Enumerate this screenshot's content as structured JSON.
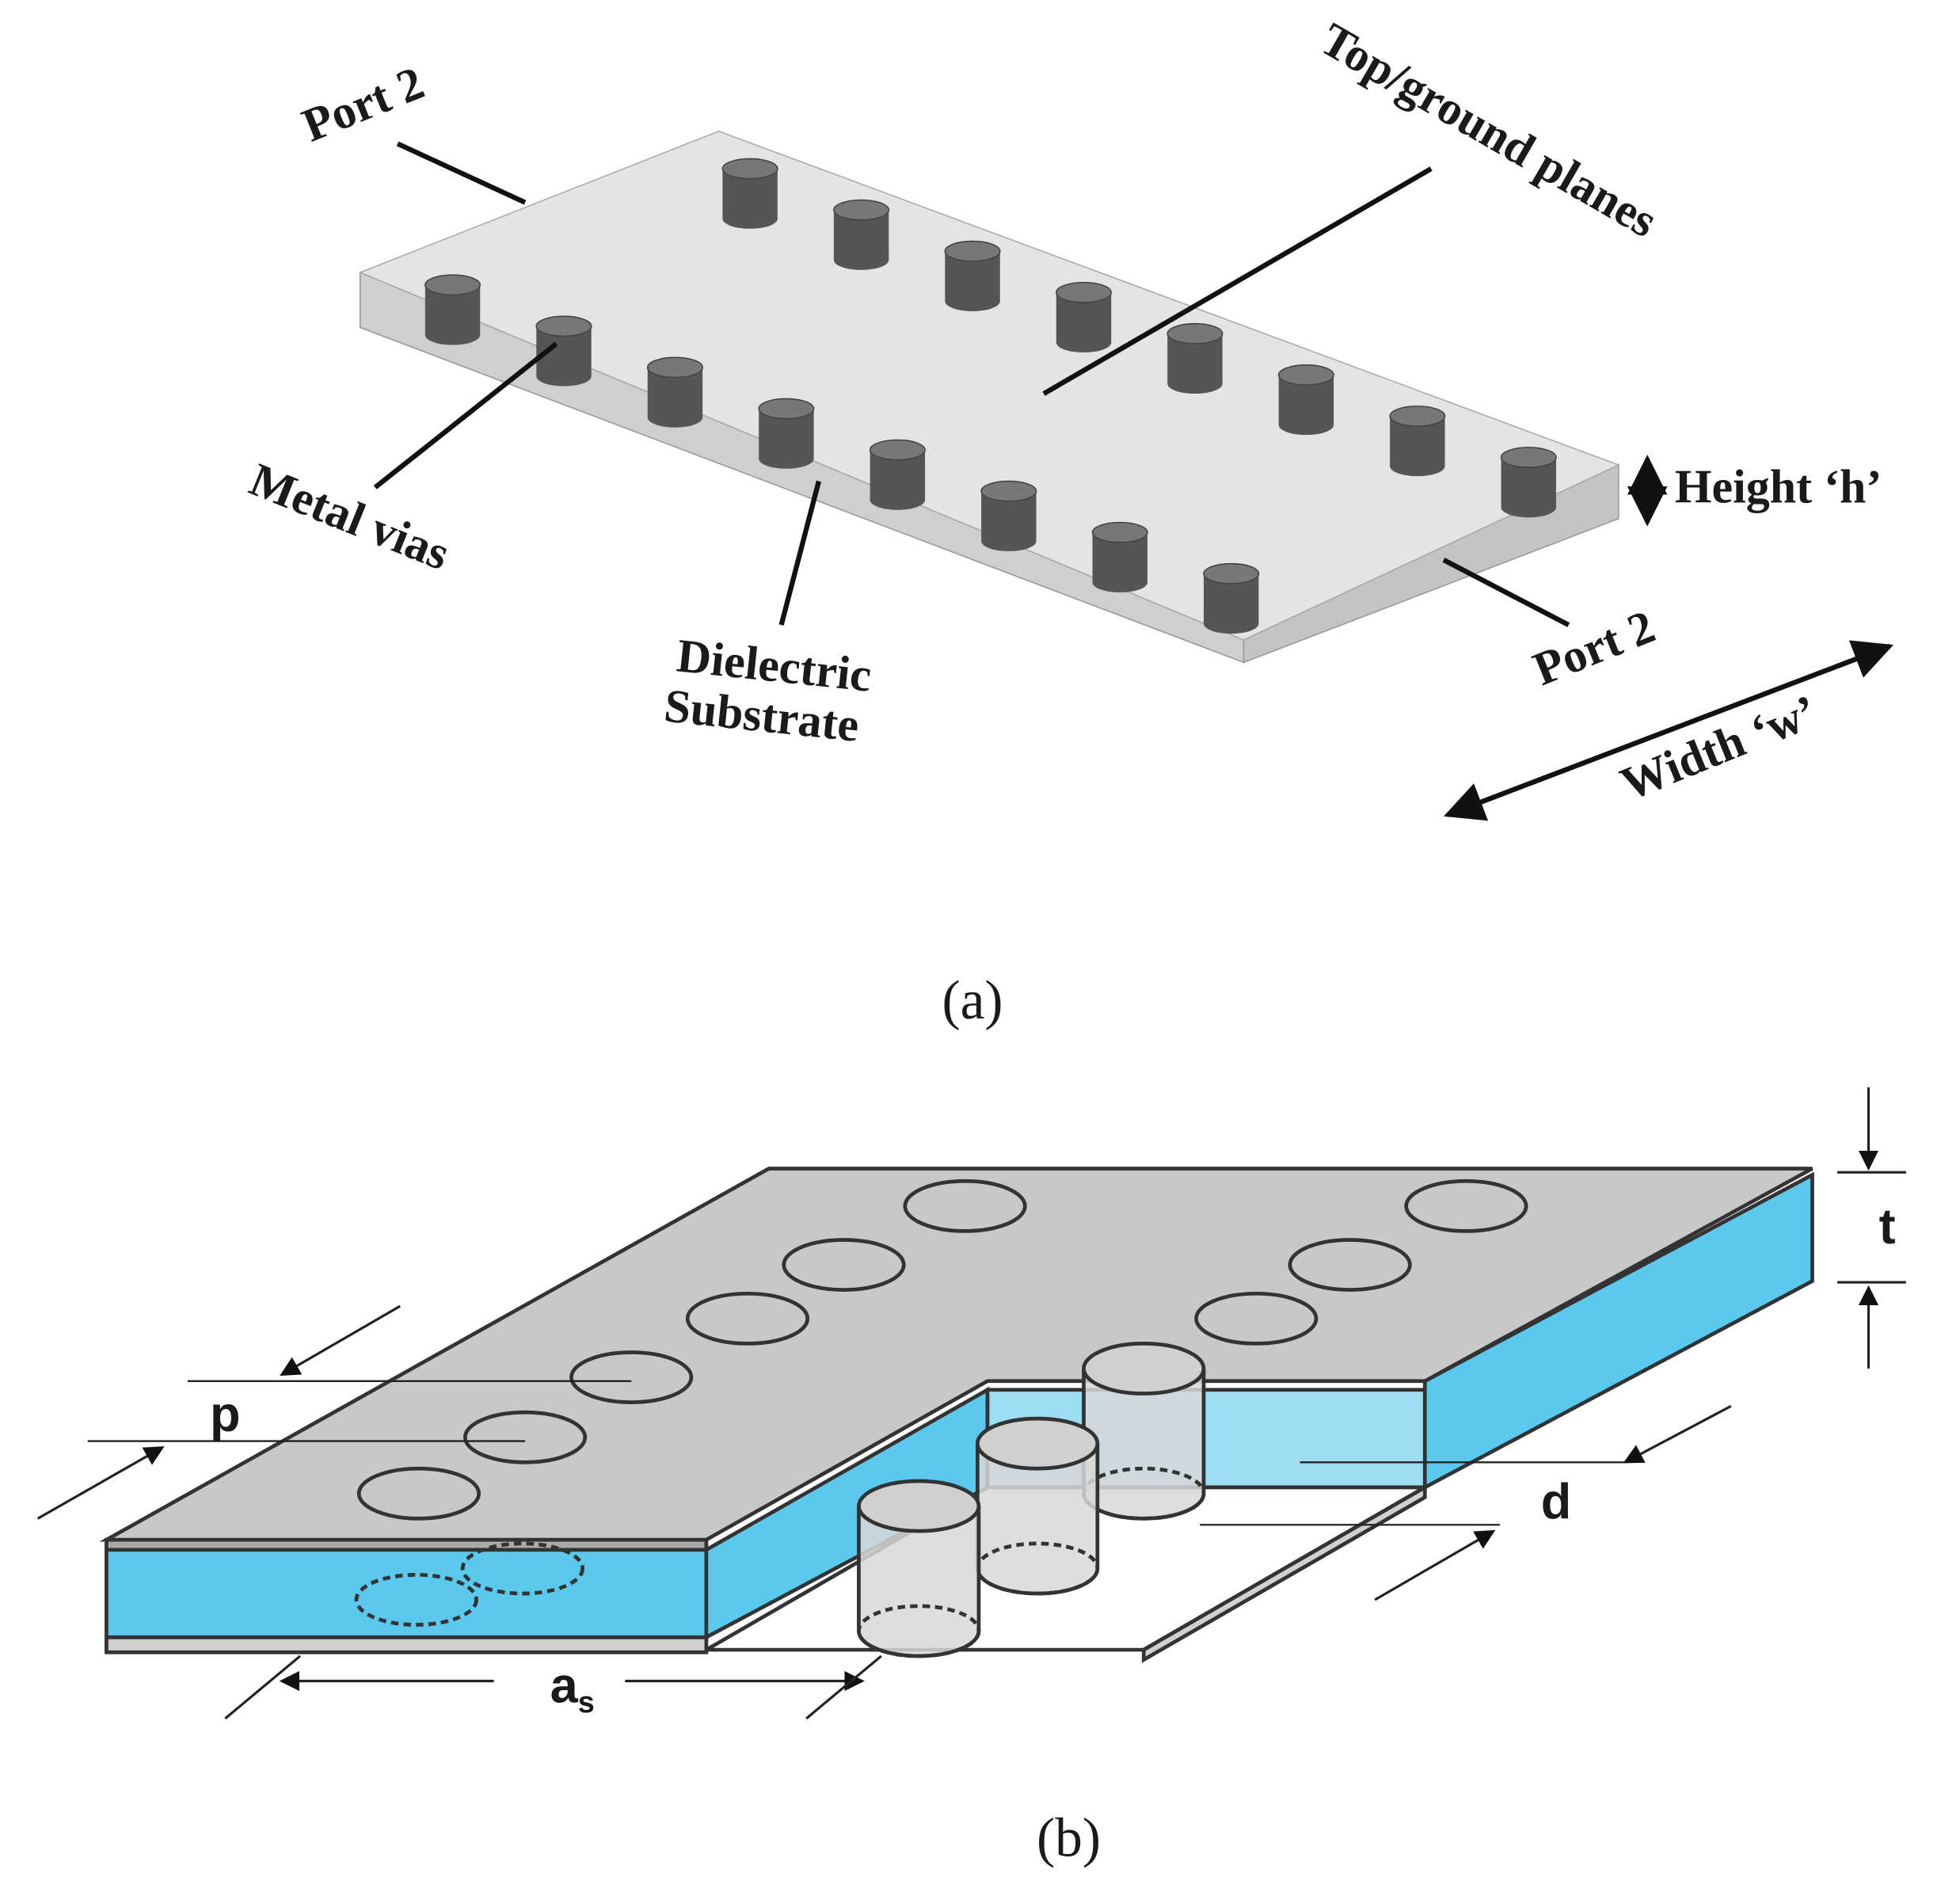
{
  "panel_a": {
    "labels": {
      "port_top": "Port 2",
      "planes": "Top/ground planes",
      "height": "Height ‘h’",
      "vias": "Metal vias",
      "dielectric": "Dielectric",
      "substrate": "Substrate",
      "port_bottom": "Port 2",
      "width": "Width ‘w’"
    },
    "caption": "(a)"
  },
  "panel_b": {
    "labels": {
      "p": "p",
      "t": "t",
      "d": "d",
      "a": "a",
      "a_sub": "s"
    },
    "caption": "(b)"
  }
}
